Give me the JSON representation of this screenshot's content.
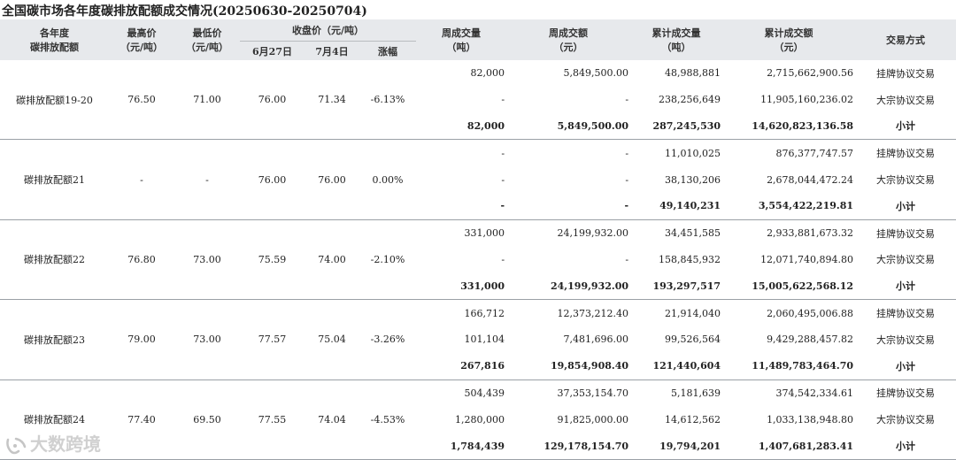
{
  "title": "全国碳市场各年度碳排放配额成交情况(20250630-20250704)",
  "header": {
    "name": [
      "各年度",
      "碳排放配额"
    ],
    "high": [
      "最高价",
      "（元/吨）"
    ],
    "low": [
      "最低价",
      "（元/吨）"
    ],
    "close": "收盘价（元/吨）",
    "close_d1": "6月27日",
    "close_d2": "7月4日",
    "change": "涨幅",
    "week_vol": [
      "周成交量",
      "（吨）"
    ],
    "week_amt": [
      "周成交额",
      "（元）"
    ],
    "cum_vol": [
      "累计成交量",
      "（吨）"
    ],
    "cum_amt": [
      "累计成交额",
      "（元）"
    ],
    "type": "交易方式"
  },
  "groups": [
    {
      "name": "碳排放配额19-20",
      "high": "76.50",
      "low": "71.00",
      "close_d1": "76.00",
      "close_d2": "71.34",
      "change": "-6.13%",
      "rows": [
        {
          "week_vol": "82,000",
          "week_amt": "5,849,500.00",
          "cum_vol": "48,988,881",
          "cum_amt": "2,715,662,900.56",
          "type": "挂牌协议交易"
        },
        {
          "week_vol": "-",
          "week_amt": "-",
          "cum_vol": "238,256,649",
          "cum_amt": "11,905,160,236.02",
          "type": "大宗协议交易"
        },
        {
          "week_vol": "82,000",
          "week_amt": "5,849,500.00",
          "cum_vol": "287,245,530",
          "cum_amt": "14,620,823,136.58",
          "type": "小计"
        }
      ]
    },
    {
      "name": "碳排放配额21",
      "high": "-",
      "low": "-",
      "close_d1": "76.00",
      "close_d2": "76.00",
      "change": "0.00%",
      "rows": [
        {
          "week_vol": "-",
          "week_amt": "-",
          "cum_vol": "11,010,025",
          "cum_amt": "876,377,747.57",
          "type": "挂牌协议交易"
        },
        {
          "week_vol": "-",
          "week_amt": "-",
          "cum_vol": "38,130,206",
          "cum_amt": "2,678,044,472.24",
          "type": "大宗协议交易"
        },
        {
          "week_vol": "-",
          "week_amt": "-",
          "cum_vol": "49,140,231",
          "cum_amt": "3,554,422,219.81",
          "type": "小计"
        }
      ]
    },
    {
      "name": "碳排放配额22",
      "high": "76.80",
      "low": "73.00",
      "close_d1": "75.59",
      "close_d2": "74.00",
      "change": "-2.10%",
      "rows": [
        {
          "week_vol": "331,000",
          "week_amt": "24,199,932.00",
          "cum_vol": "34,451,585",
          "cum_amt": "2,933,881,673.32",
          "type": "挂牌协议交易"
        },
        {
          "week_vol": "-",
          "week_amt": "-",
          "cum_vol": "158,845,932",
          "cum_amt": "12,071,740,894.80",
          "type": "大宗协议交易"
        },
        {
          "week_vol": "331,000",
          "week_amt": "24,199,932.00",
          "cum_vol": "193,297,517",
          "cum_amt": "15,005,622,568.12",
          "type": "小计"
        }
      ]
    },
    {
      "name": "碳排放配额23",
      "high": "79.00",
      "low": "73.00",
      "close_d1": "77.57",
      "close_d2": "75.04",
      "change": "-3.26%",
      "rows": [
        {
          "week_vol": "166,712",
          "week_amt": "12,373,212.40",
          "cum_vol": "21,914,040",
          "cum_amt": "2,060,495,006.88",
          "type": "挂牌协议交易"
        },
        {
          "week_vol": "101,104",
          "week_amt": "7,481,696.00",
          "cum_vol": "99,526,564",
          "cum_amt": "9,429,288,457.82",
          "type": "大宗协议交易"
        },
        {
          "week_vol": "267,816",
          "week_amt": "19,854,908.40",
          "cum_vol": "121,440,604",
          "cum_amt": "11,489,783,464.70",
          "type": "小计"
        }
      ]
    },
    {
      "name": "碳排放配额24",
      "high": "77.40",
      "low": "69.50",
      "close_d1": "77.55",
      "close_d2": "74.04",
      "change": "-4.53%",
      "rows": [
        {
          "week_vol": "504,439",
          "week_amt": "37,353,154.70",
          "cum_vol": "5,181,639",
          "cum_amt": "374,542,334.61",
          "type": "挂牌协议交易"
        },
        {
          "week_vol": "1,280,000",
          "week_amt": "91,825,000.00",
          "cum_vol": "14,612,562",
          "cum_amt": "1,033,138,948.80",
          "type": "大宗协议交易"
        },
        {
          "week_vol": "1,784,439",
          "week_amt": "129,178,154.70",
          "cum_vol": "19,794,201",
          "cum_amt": "1,407,681,283.41",
          "type": "小计"
        }
      ]
    }
  ],
  "watermark": "大数跨境"
}
